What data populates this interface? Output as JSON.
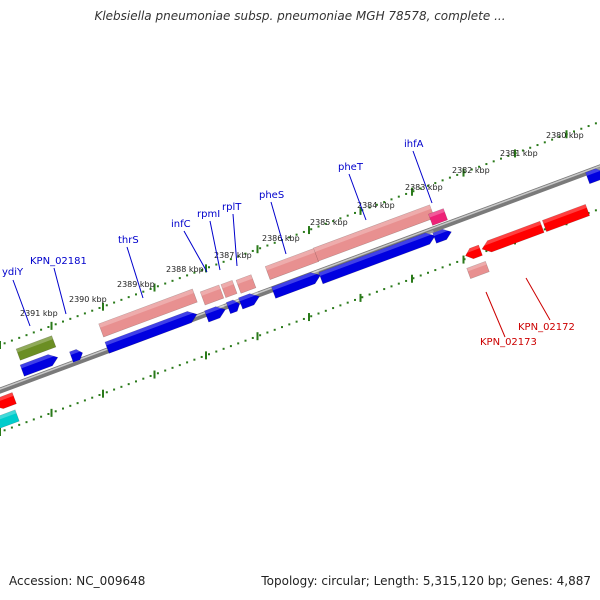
{
  "title": "Klebsiella pneumoniae subsp. pneumoniae MGH 78578, complete ...",
  "footer": {
    "accession": "Accession: NC_009648",
    "summary": "Topology: circular; Length: 5,315,120 bp; Genes: 4,887"
  },
  "colors": {
    "backbone": "#7a7a7a",
    "tick": "#2a7a1a",
    "forward_label": "#0000cc",
    "reverse_label": "#cc0000",
    "cds_blue": "#0000e0",
    "rna_pink": "#e89090",
    "cds_red": "#ff0000",
    "pseudo_magenta": "#ee2277",
    "gene_olive": "#6b8e23",
    "gene_cyan": "#00cccc"
  },
  "scale_labels": [
    "2380 kbp",
    "2381 kbp",
    "2382 kbp",
    "2383 kbp",
    "2384 kbp",
    "2385 kbp",
    "2386 kbp",
    "2387 kbp",
    "2388 kbp",
    "2389 kbp",
    "2390 kbp",
    "2391 kbp"
  ],
  "gene_labels": [
    "ihfA",
    "pheT",
    "pheS",
    "rplT",
    "rpmI",
    "infC",
    "thrS",
    "KPN_02181",
    "ydiY",
    "KPN_02172",
    "KPN_02173"
  ]
}
